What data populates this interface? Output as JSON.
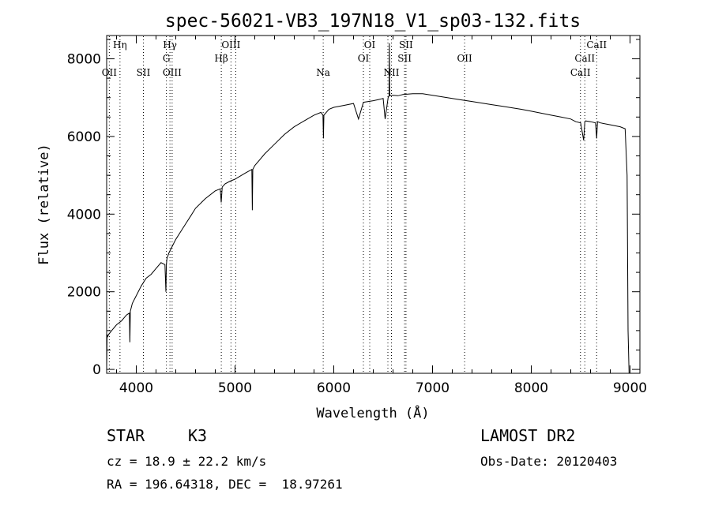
{
  "chart_data": {
    "type": "line",
    "title": "spec-56021-VB3_197N18_V1_sp03-132.fits",
    "xlabel": "Wavelength (Å)",
    "ylabel": "Flux (relative)",
    "xlim": [
      3700,
      9100
    ],
    "ylim": [
      -100,
      8600
    ],
    "x_ticks": [
      4000,
      5000,
      6000,
      7000,
      8000,
      9000
    ],
    "y_ticks": [
      0,
      2000,
      4000,
      6000,
      8000
    ],
    "grid": false,
    "series": [
      {
        "x": [
          3700,
          3705,
          3710,
          3720,
          3750,
          3800,
          3850,
          3900,
          3930,
          3935,
          3940,
          3960,
          4000,
          4050,
          4100,
          4150,
          4200,
          4250,
          4290,
          4300,
          4305,
          4310,
          4330,
          4360,
          4400,
          4450,
          4500,
          4550,
          4600,
          4700,
          4800,
          4850,
          4860,
          4870,
          4900,
          4950,
          5000,
          5100,
          5170,
          5175,
          5180,
          5200,
          5250,
          5300,
          5400,
          5500,
          5600,
          5700,
          5800,
          5870,
          5890,
          5895,
          5900,
          5950,
          6000,
          6100,
          6200,
          6250,
          6300,
          6350,
          6400,
          6450,
          6500,
          6520,
          6550,
          6560,
          6563,
          6566,
          6570,
          6600,
          6650,
          6700,
          6800,
          6900,
          7000,
          7100,
          7200,
          7300,
          7400,
          7500,
          7600,
          7700,
          7800,
          7900,
          8000,
          8100,
          8200,
          8300,
          8400,
          8450,
          8500,
          8530,
          8542,
          8550,
          8600,
          8650,
          8662,
          8670,
          8700,
          8800,
          8900,
          8950,
          8970,
          8980,
          8990
        ],
        "y": [
          0,
          900,
          850,
          900,
          1000,
          1150,
          1250,
          1400,
          1450,
          700,
          1500,
          1700,
          1900,
          2150,
          2350,
          2450,
          2600,
          2750,
          2700,
          2000,
          2700,
          2850,
          3000,
          3150,
          3350,
          3550,
          3750,
          3950,
          4150,
          4400,
          4600,
          4650,
          4300,
          4700,
          4780,
          4850,
          4900,
          5050,
          5150,
          4100,
          5150,
          5250,
          5400,
          5550,
          5800,
          6050,
          6250,
          6400,
          6550,
          6620,
          6550,
          5950,
          6550,
          6700,
          6750,
          6800,
          6850,
          6450,
          6880,
          6900,
          6920,
          6950,
          6980,
          6450,
          7000,
          7050,
          8400,
          7050,
          7050,
          7060,
          7050,
          7080,
          7100,
          7100,
          7060,
          7020,
          6980,
          6940,
          6900,
          6860,
          6820,
          6780,
          6740,
          6700,
          6650,
          6600,
          6550,
          6500,
          6450,
          6380,
          6350,
          5900,
          6380,
          6400,
          6380,
          6350,
          5950,
          6380,
          6350,
          6300,
          6250,
          6200,
          5000,
          1000,
          -100
        ]
      }
    ],
    "line_markers": [
      {
        "x": 3727,
        "label": "OII",
        "row": 3
      },
      {
        "x": 3835,
        "label": "Hη",
        "row": 1
      },
      {
        "x": 4072,
        "label": "SII",
        "row": 3
      },
      {
        "x": 4305,
        "label": "G",
        "row": 2
      },
      {
        "x": 4341,
        "label": "Hγ",
        "row": 1
      },
      {
        "x": 4363,
        "label": "OIII",
        "row": 3
      },
      {
        "x": 4861,
        "label": "Hβ",
        "row": 2
      },
      {
        "x": 4959,
        "label": "OIII",
        "row": 1
      },
      {
        "x": 5007,
        "label": "",
        "row": 1
      },
      {
        "x": 5893,
        "label": "Na",
        "row": 3
      },
      {
        "x": 6300,
        "label": "OI",
        "row": 2
      },
      {
        "x": 6364,
        "label": "OI",
        "row": 1
      },
      {
        "x": 6548,
        "label": "",
        "row": 3
      },
      {
        "x": 6584,
        "label": "NII",
        "row": 3
      },
      {
        "x": 6717,
        "label": "SII",
        "row": 2
      },
      {
        "x": 6731,
        "label": "SII",
        "row": 1
      },
      {
        "x": 7325,
        "label": "OII",
        "row": 2
      },
      {
        "x": 8498,
        "label": "CaII",
        "row": 3
      },
      {
        "x": 8542,
        "label": "CaII",
        "row": 2
      },
      {
        "x": 8662,
        "label": "CaII",
        "row": 1
      }
    ]
  },
  "info": {
    "object_class": "STAR",
    "subclass": "K3",
    "survey": "LAMOST DR2",
    "cz": "cz = 18.9 ± 22.2 km/s",
    "obs_date": "Obs-Date: 20120403",
    "coords": "RA = 196.64318, DEC =  18.97261"
  },
  "colors": {
    "foreground": "#000000",
    "marker": "#000000",
    "background": "#ffffff"
  }
}
